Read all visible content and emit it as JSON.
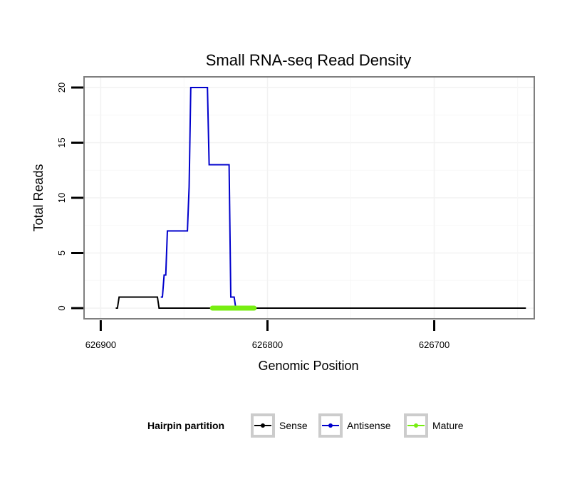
{
  "chart_data": {
    "type": "line",
    "title": "Small RNA-seq Read Density",
    "xlabel": "Genomic Position",
    "ylabel": "Total Reads",
    "xlim": [
      626910,
      626640
    ],
    "ylim": [
      0,
      20
    ],
    "x_reversed": true,
    "x_ticks": [
      626900,
      626800,
      626700
    ],
    "x_tick_labels": [
      "626900",
      "626800",
      "626700"
    ],
    "y_ticks": [
      0,
      5,
      10,
      15,
      20
    ],
    "y_tick_labels": [
      "0",
      "5",
      "10",
      "15",
      "20"
    ],
    "grid": true,
    "legend": {
      "title": "Hairpin partition",
      "position": "bottom",
      "entries": [
        "Sense",
        "Antisense",
        "Mature"
      ]
    },
    "series": [
      {
        "name": "Sense",
        "color": "#000000",
        "x": [
          626891,
          626890,
          626889,
          626866,
          626865,
          626864,
          626645
        ],
        "y": [
          0,
          0,
          1,
          1,
          0,
          0,
          0
        ]
      },
      {
        "name": "Antisense",
        "color": "#0000cc",
        "x": [
          626864,
          626863,
          626862,
          626861,
          626860,
          626859,
          626858,
          626848,
          626847,
          626846,
          626836,
          626835,
          626823,
          626822,
          626820,
          626819,
          626817
        ],
        "y": [
          1,
          1,
          3,
          3,
          7,
          7,
          7,
          7,
          11,
          20,
          20,
          13,
          13,
          1,
          1,
          0,
          0
        ]
      },
      {
        "name": "Mature",
        "color": "#77ee11",
        "x": [
          626833,
          626808
        ],
        "y": [
          0,
          0
        ]
      }
    ]
  }
}
